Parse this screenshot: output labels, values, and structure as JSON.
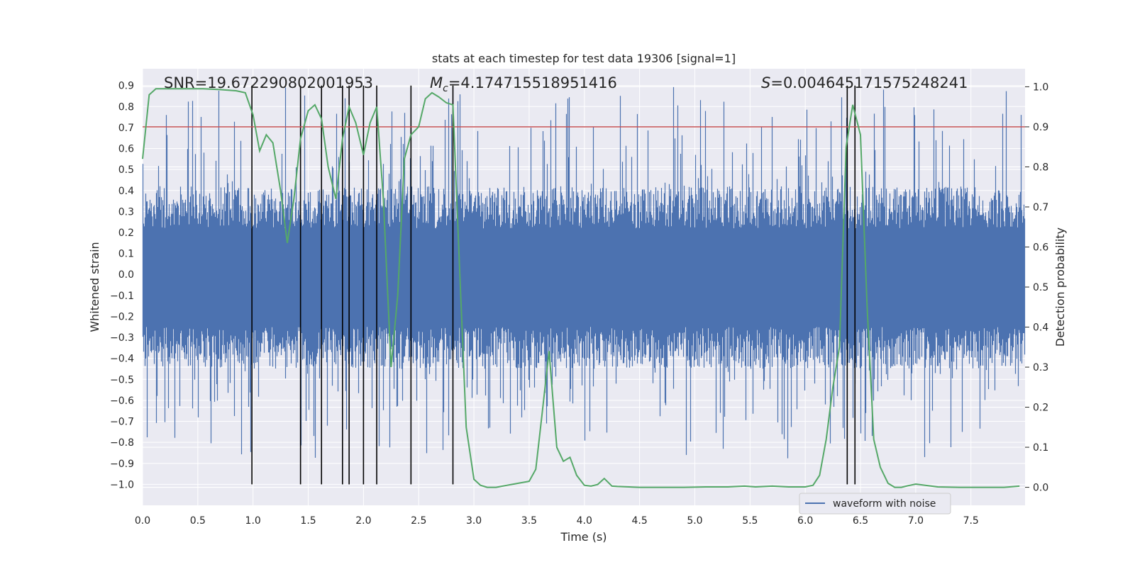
{
  "chart_data": {
    "type": "line",
    "title": "stats at each timestep for test data 19306 [signal=1]",
    "xlabel": "Time (s)",
    "ylabel": "Whitened strain",
    "y2label": "Detection probability",
    "xlim": [
      0.0,
      7.99
    ],
    "ylim": [
      -1.1,
      0.98
    ],
    "y2lim": [
      -0.045,
      1.045
    ],
    "x_ticks": [
      "0.0",
      "0.5",
      "1.0",
      "1.5",
      "2.0",
      "2.5",
      "3.0",
      "3.5",
      "4.0",
      "4.5",
      "5.0",
      "5.5",
      "6.0",
      "6.5",
      "7.0",
      "7.5"
    ],
    "y_ticks": [
      "0.9",
      "0.8",
      "0.7",
      "0.6",
      "0.5",
      "0.4",
      "0.3",
      "0.2",
      "0.1",
      "0.0",
      "−0.1",
      "−0.2",
      "−0.3",
      "−0.4",
      "−0.5",
      "−0.6",
      "−0.7",
      "−0.8",
      "−0.9",
      "−1.0"
    ],
    "y2_ticks": [
      "1.0",
      "0.9",
      "0.8",
      "0.7",
      "0.6",
      "0.5",
      "0.4",
      "0.3",
      "0.2",
      "0.1",
      "0.0"
    ],
    "annotations": {
      "snr": "SNR=19.672290802001953",
      "mc_symbol": "M",
      "mc_sub": "c",
      "mc_value": "=4.174715518951416",
      "s_symbol": "S",
      "s_value": "=0.004645171575248241"
    },
    "threshold": 0.9,
    "vlines": [
      0.99,
      1.43,
      1.62,
      1.81,
      1.87,
      2.0,
      2.12,
      2.43,
      2.81
    ],
    "vlines_right": [
      6.38,
      6.45
    ],
    "series": [
      {
        "name": "waveform with noise",
        "axis": "left",
        "color": "#4c72b0",
        "description": "whitened strain, dense noise roughly within ±0.45 with spikes up to ±0.9"
      },
      {
        "name": "detection probability",
        "axis": "right",
        "color": "#55a868",
        "x": [
          0.0,
          0.06,
          0.12,
          0.25,
          0.4,
          0.55,
          0.7,
          0.85,
          0.93,
          1.0,
          1.06,
          1.12,
          1.18,
          1.25,
          1.31,
          1.37,
          1.43,
          1.5,
          1.56,
          1.62,
          1.68,
          1.75,
          1.81,
          1.87,
          1.93,
          2.0,
          2.06,
          2.12,
          2.18,
          2.25,
          2.31,
          2.37,
          2.43,
          2.5,
          2.56,
          2.62,
          2.68,
          2.75,
          2.81,
          2.87,
          2.93,
          3.0,
          3.06,
          3.12,
          3.2,
          3.3,
          3.4,
          3.5,
          3.56,
          3.62,
          3.68,
          3.75,
          3.81,
          3.87,
          3.93,
          4.0,
          4.06,
          4.12,
          4.18,
          4.25,
          4.3,
          4.5,
          4.7,
          4.9,
          5.1,
          5.3,
          5.45,
          5.55,
          5.7,
          5.85,
          6.0,
          6.07,
          6.13,
          6.19,
          6.25,
          6.31,
          6.37,
          6.43,
          6.5,
          6.56,
          6.62,
          6.68,
          6.75,
          6.81,
          6.87,
          6.93,
          7.0,
          7.2,
          7.4,
          7.6,
          7.8,
          7.94
        ],
        "values": [
          0.82,
          0.98,
          0.995,
          0.995,
          0.995,
          0.995,
          0.993,
          0.99,
          0.985,
          0.93,
          0.84,
          0.88,
          0.86,
          0.74,
          0.61,
          0.72,
          0.87,
          0.94,
          0.955,
          0.92,
          0.8,
          0.72,
          0.87,
          0.95,
          0.91,
          0.83,
          0.91,
          0.95,
          0.72,
          0.3,
          0.48,
          0.82,
          0.88,
          0.9,
          0.97,
          0.985,
          0.975,
          0.96,
          0.955,
          0.55,
          0.15,
          0.02,
          0.005,
          0.0,
          0.0,
          0.005,
          0.01,
          0.015,
          0.045,
          0.19,
          0.34,
          0.1,
          0.065,
          0.075,
          0.03,
          0.005,
          0.003,
          0.007,
          0.022,
          0.003,
          0.002,
          0.0,
          0.0,
          0.0,
          0.001,
          0.001,
          0.003,
          0.001,
          0.003,
          0.001,
          0.001,
          0.005,
          0.03,
          0.12,
          0.25,
          0.35,
          0.85,
          0.955,
          0.88,
          0.45,
          0.12,
          0.05,
          0.01,
          0.0,
          0.0,
          0.004,
          0.008,
          0.001,
          0.0,
          0.0,
          0.0,
          0.003
        ]
      }
    ],
    "legend": {
      "label": "waveform with noise",
      "position": "lower right"
    }
  }
}
